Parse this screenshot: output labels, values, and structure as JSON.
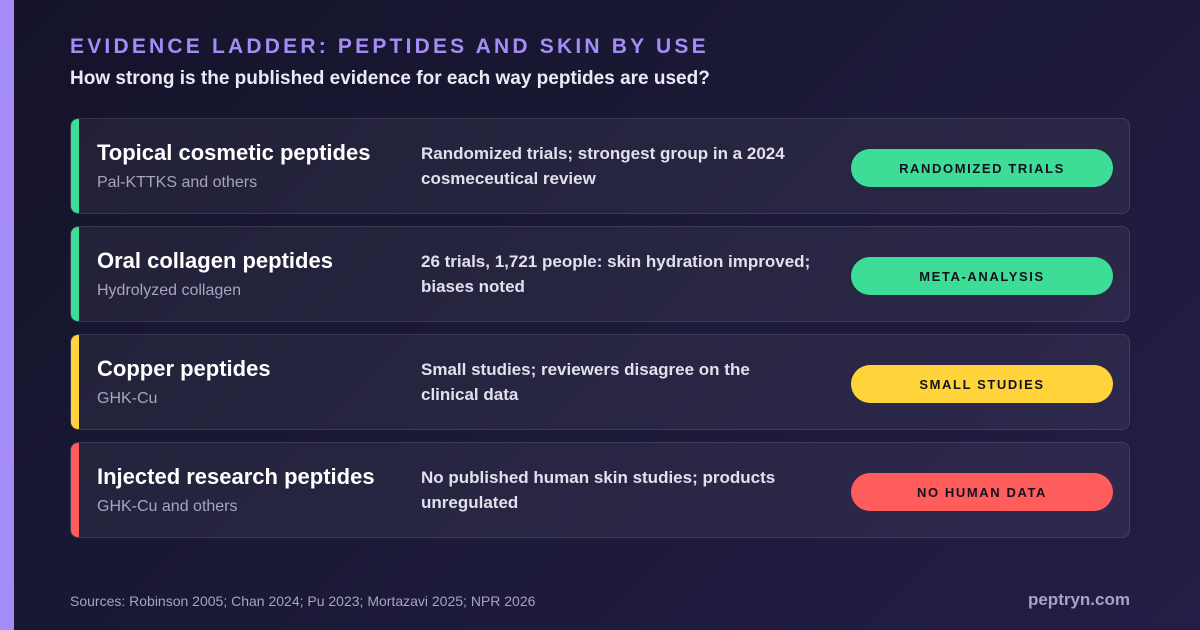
{
  "header": {
    "title": "EVIDENCE LADDER: PEPTIDES AND SKIN BY USE",
    "subtitle": "How strong is the published evidence for each way peptides are used?"
  },
  "colors": {
    "accent": "#a58cf6",
    "green": "#3ddc97",
    "yellow": "#ffd43b",
    "red": "#ff5c5c"
  },
  "rows": [
    {
      "name": "Topical cosmetic peptides",
      "sub": "Pal-KTTKS and others",
      "desc": "Randomized trials; strongest group in a 2024 cosmeceutical review",
      "badge": "RANDOMIZED TRIALS",
      "color": "#3ddc97"
    },
    {
      "name": "Oral collagen peptides",
      "sub": "Hydrolyzed collagen",
      "desc": "26 trials, 1,721 people: skin hydration improved; biases noted",
      "badge": "META-ANALYSIS",
      "color": "#3ddc97"
    },
    {
      "name": "Copper peptides",
      "sub": "GHK-Cu",
      "desc": "Small studies; reviewers disagree on the clinical data",
      "badge": "SMALL STUDIES",
      "color": "#ffd43b"
    },
    {
      "name": "Injected research peptides",
      "sub": "GHK-Cu and others",
      "desc": "No published human skin studies; products unregulated",
      "badge": "NO HUMAN DATA",
      "color": "#ff5c5c"
    }
  ],
  "footer": {
    "sources": "Sources: Robinson 2005; Chan 2024; Pu 2023; Mortazavi 2025; NPR 2026",
    "brand": "peptryn.com"
  }
}
